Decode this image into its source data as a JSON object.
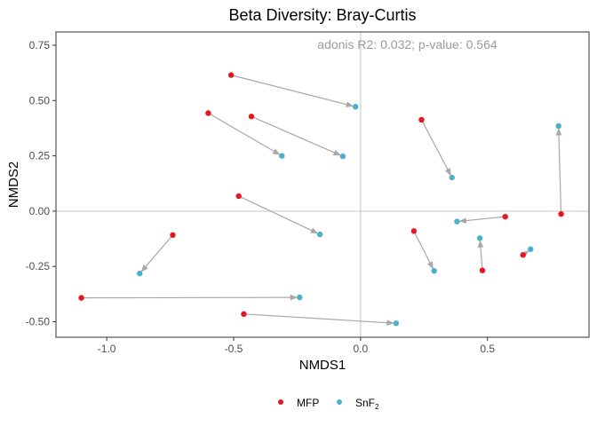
{
  "chart_data": {
    "type": "scatter",
    "title": "Beta Diversity: Bray-Curtis",
    "annotation": "adonis R2: 0.032; p-value: 0.564",
    "xlabel": "NMDS1",
    "ylabel": "NMDS2",
    "xlim": [
      -1.2,
      0.9
    ],
    "ylim": [
      -0.57,
      0.81
    ],
    "xticks": [
      -1.0,
      -0.5,
      0.0,
      0.5
    ],
    "xtick_labels": [
      "-1.0",
      "-0.5",
      "0.0",
      "0.5"
    ],
    "yticks": [
      -0.5,
      -0.25,
      0.0,
      0.25,
      0.5,
      0.75
    ],
    "ytick_labels": [
      "-0.50",
      "-0.25",
      "0.00",
      "0.25",
      "0.50",
      "0.75"
    ],
    "reference_lines": {
      "x": 0,
      "y": 0
    },
    "grid": false,
    "legend_position": "bottom",
    "series": [
      {
        "name": "MFP",
        "color": "#e8161f"
      },
      {
        "name": "SnF",
        "name_subscript": "2",
        "color": "#4ab0cc"
      }
    ],
    "arrow_color": "#a8a8a8",
    "pairs": [
      {
        "from": [
          -0.51,
          0.615
        ],
        "to": [
          -0.02,
          0.472
        ]
      },
      {
        "from": [
          -0.6,
          0.443
        ],
        "to": [
          -0.31,
          0.25
        ]
      },
      {
        "from": [
          -0.43,
          0.428
        ],
        "to": [
          -0.07,
          0.248
        ]
      },
      {
        "from": [
          0.24,
          0.413
        ],
        "to": [
          0.36,
          0.152
        ]
      },
      {
        "from": [
          0.79,
          -0.013
        ],
        "to": [
          0.78,
          0.385
        ]
      },
      {
        "from": [
          -0.48,
          0.068
        ],
        "to": [
          -0.16,
          -0.105
        ]
      },
      {
        "from": [
          0.57,
          -0.025
        ],
        "to": [
          0.38,
          -0.047
        ]
      },
      {
        "from": [
          -0.74,
          -0.108
        ],
        "to": [
          -0.87,
          -0.282
        ]
      },
      {
        "from": [
          0.21,
          -0.09
        ],
        "to": [
          0.29,
          -0.27
        ]
      },
      {
        "from": [
          0.48,
          -0.268
        ],
        "to": [
          0.47,
          -0.122
        ]
      },
      {
        "from": [
          0.64,
          -0.198
        ],
        "to": [
          0.67,
          -0.172
        ]
      },
      {
        "from": [
          -1.1,
          -0.392
        ],
        "to": [
          -0.24,
          -0.39
        ]
      },
      {
        "from": [
          -0.46,
          -0.465
        ],
        "to": [
          0.14,
          -0.507
        ]
      }
    ]
  }
}
